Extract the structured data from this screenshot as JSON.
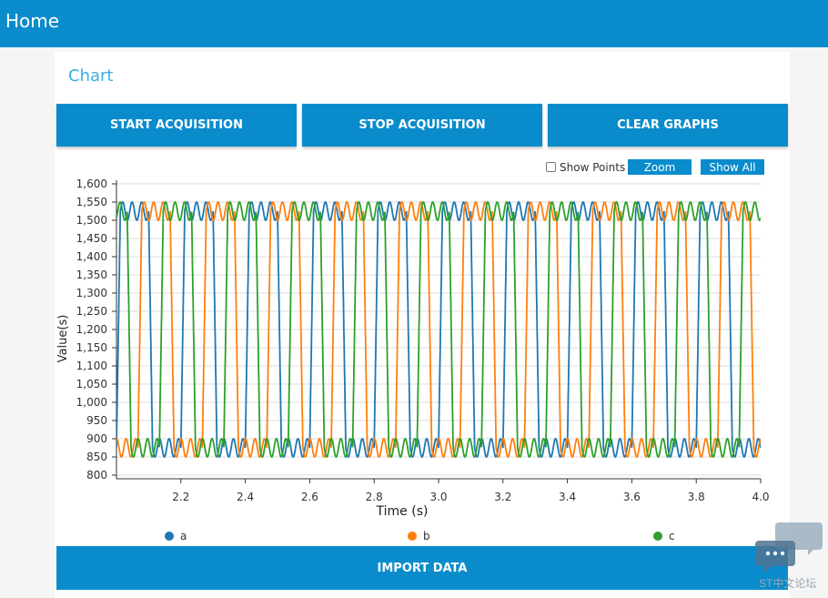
{
  "header": {
    "title": "Home"
  },
  "card": {
    "title": "Chart"
  },
  "toolbar": {
    "start_label": "START ACQUISITION",
    "stop_label": "STOP ACQUISITION",
    "clear_label": "CLEAR GRAPHS"
  },
  "chart_controls": {
    "show_points_label": "Show Points",
    "show_points_checked": false,
    "zoom_label": "Zoom",
    "show_all_label": "Show All"
  },
  "import": {
    "label": "IMPORT DATA"
  },
  "watermark": {
    "text": "ST中文论坛"
  },
  "chart_data": {
    "type": "line",
    "xlabel": "Time (s)",
    "ylabel": "Value(s)",
    "xlim": [
      2.0,
      4.0
    ],
    "ylim": [
      790,
      1610
    ],
    "x_ticks": [
      2.2,
      2.4,
      2.6,
      2.8,
      3.0,
      3.2,
      3.4,
      3.6,
      3.8,
      4.0
    ],
    "x_tick_labels": [
      "2.2",
      "2.4",
      "2.6",
      "2.8",
      "3.0",
      "3.2",
      "3.4",
      "3.6",
      "3.8",
      "4.0"
    ],
    "y_ticks": [
      800,
      850,
      900,
      950,
      1000,
      1050,
      1100,
      1150,
      1200,
      1250,
      1300,
      1350,
      1400,
      1450,
      1500,
      1550,
      1600
    ],
    "y_tick_labels": [
      "800",
      "850",
      "900",
      "950",
      "1,000",
      "1,050",
      "1,100",
      "1,150",
      "1,200",
      "1,250",
      "1,300",
      "1,350",
      "1,400",
      "1,450",
      "1,500",
      "1,550",
      "1,600"
    ],
    "grid": true,
    "legend": "bottom",
    "waveform": {
      "period_s": 0.2,
      "high_level": 1525,
      "low_level": 875,
      "ripple_amplitude": 25,
      "ripple_cycles_per_level": 3
    },
    "series": [
      {
        "name": "a",
        "color": "#1f77b4",
        "phase_s": 0.0
      },
      {
        "name": "b",
        "color": "#ff7f0e",
        "phase_s": 0.0667
      },
      {
        "name": "c",
        "color": "#2ca02c",
        "phase_s": 0.1333
      }
    ]
  }
}
